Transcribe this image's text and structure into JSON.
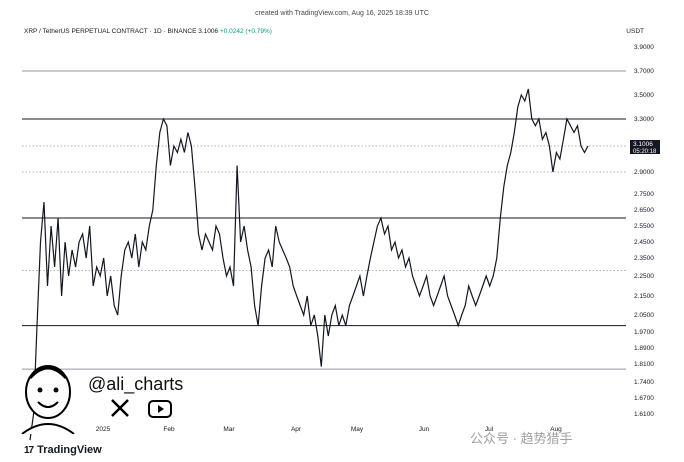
{
  "watermark": "created with TradingView.com, Aug 16, 2025 18:39 UTC",
  "header": {
    "symbol": "XRP / TetherUS PERPETUAL CONTRACT · 1D · BINANCE",
    "price": "3.1006",
    "change": "+0.0242 (+0.79%)"
  },
  "unit": "USDT",
  "price_tag": {
    "value": "3.1006",
    "countdown": "05:20:18"
  },
  "social": {
    "handle": "@ali_charts",
    "icons": [
      "x-icon",
      "youtube-icon"
    ]
  },
  "brand": "TradingView",
  "wechat_watermark": "公众号 · 趋势猎手",
  "colors": {
    "line": "#131722",
    "level": "#131722",
    "dotted": "#9598a1",
    "price_tag_bg": "#131722"
  },
  "chart_data": {
    "type": "line",
    "y_ticks": [
      "3.9000",
      "3.7000",
      "3.5000",
      "3.3000",
      "2.9000",
      "2.7500",
      "2.6500",
      "2.5500",
      "2.4500",
      "2.3500",
      "2.2500",
      "2.1500",
      "2.0500",
      "1.9700",
      "1.8900",
      "1.8100",
      "1.7400",
      "1.6700",
      "1.6100"
    ],
    "x_ticks": [
      "Nov",
      "2025",
      "Feb",
      "Mar",
      "Apr",
      "May",
      "Jun",
      "Jul",
      "Aug"
    ],
    "levels": [
      {
        "value": 3.7,
        "style": "solid"
      },
      {
        "value": 3.3,
        "style": "solid"
      },
      {
        "value": 3.1,
        "style": "dotted"
      },
      {
        "value": 2.9,
        "style": "dotted"
      },
      {
        "value": 2.6,
        "style": "solid"
      },
      {
        "value": 2.28,
        "style": "dotted"
      },
      {
        "value": 2.0,
        "style": "solid"
      },
      {
        "value": 1.79,
        "style": "solid"
      }
    ],
    "series": [
      {
        "values": [
          1.2,
          1.6,
          2.0,
          2.45,
          2.7,
          2.2,
          2.55,
          2.3,
          2.6,
          2.15,
          2.45,
          2.25,
          2.4,
          2.3,
          2.45,
          2.5,
          2.35,
          2.55,
          2.2,
          2.3,
          2.25,
          2.35,
          2.15,
          2.25,
          2.1,
          2.05,
          2.25,
          2.4,
          2.45,
          2.35,
          2.5,
          2.3,
          2.45,
          2.4,
          2.55,
          2.65,
          2.95,
          3.2,
          3.3,
          3.25,
          2.95,
          3.1,
          3.05,
          3.15,
          3.05,
          3.2,
          3.1,
          2.8,
          2.5,
          2.4,
          2.5,
          2.45,
          2.4,
          2.55,
          2.5,
          2.35,
          2.25,
          2.3,
          2.2,
          2.95,
          2.45,
          2.55,
          2.4,
          2.3,
          2.1,
          2.0,
          2.2,
          2.35,
          2.4,
          2.3,
          2.55,
          2.45,
          2.4,
          2.35,
          2.3,
          2.2,
          2.15,
          2.1,
          2.05,
          2.15,
          2.0,
          2.05,
          1.95,
          1.8,
          2.05,
          1.95,
          2.05,
          2.1,
          2.0,
          2.05,
          2.0,
          2.1,
          2.15,
          2.2,
          2.25,
          2.15,
          2.25,
          2.35,
          2.45,
          2.55,
          2.6,
          2.5,
          2.55,
          2.4,
          2.45,
          2.35,
          2.4,
          2.3,
          2.35,
          2.25,
          2.2,
          2.15,
          2.2,
          2.25,
          2.15,
          2.1,
          2.15,
          2.2,
          2.25,
          2.15,
          2.1,
          2.05,
          2.0,
          2.05,
          2.1,
          2.2,
          2.15,
          2.1,
          2.15,
          2.2,
          2.25,
          2.2,
          2.25,
          2.35,
          2.6,
          2.8,
          2.95,
          3.05,
          3.2,
          3.4,
          3.5,
          3.45,
          3.55,
          3.3,
          3.25,
          3.3,
          3.15,
          3.2,
          3.1,
          2.9,
          3.05,
          3.0,
          3.15,
          3.3,
          3.25,
          3.2,
          3.25,
          3.1,
          3.05,
          3.1
        ]
      }
    ]
  }
}
